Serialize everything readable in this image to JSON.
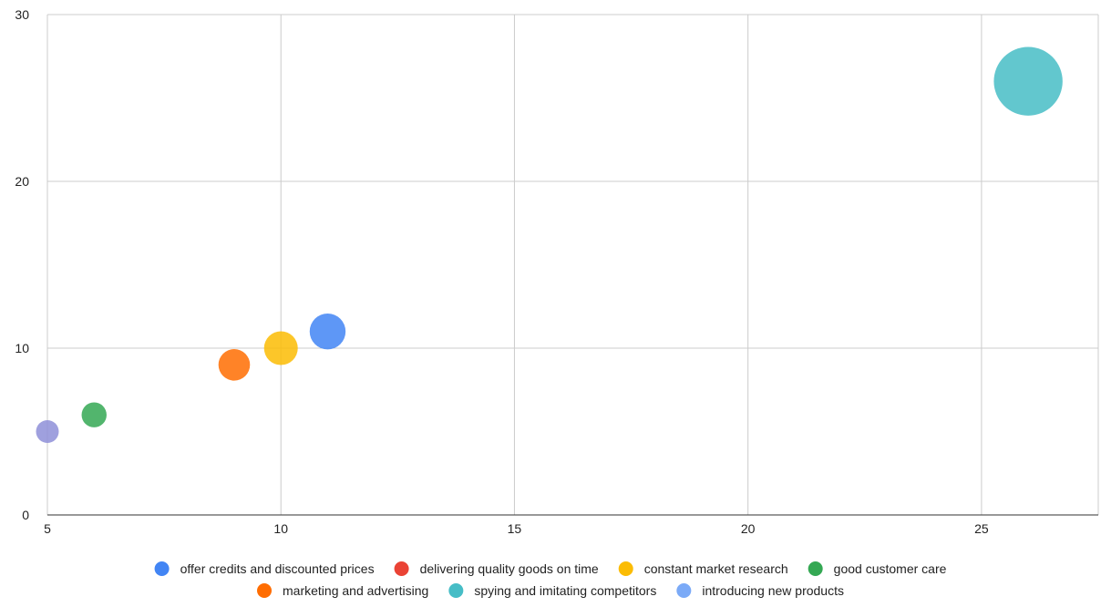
{
  "chart_data": {
    "type": "bubble",
    "title": "",
    "xlabel": "",
    "ylabel": "",
    "xlim": [
      5,
      27.5
    ],
    "ylim": [
      0,
      30
    ],
    "x_ticks": [
      5,
      10,
      15,
      20,
      25
    ],
    "y_ticks": [
      0,
      10,
      20,
      30
    ],
    "x_tick_labels": [
      "5",
      "10",
      "15",
      "20",
      "25"
    ],
    "y_tick_labels": [
      "0",
      "10",
      "20",
      "30"
    ],
    "grid": true,
    "legend_position": "bottom",
    "series": [
      {
        "name": "offer credits and discounted prices",
        "color": "#4285F4",
        "points": [
          {
            "x": 11,
            "y": 11,
            "size": 11
          }
        ]
      },
      {
        "name": "delivering quality goods on time",
        "color": "#EA4335",
        "points": []
      },
      {
        "name": "constant market research",
        "color": "#FBBC04",
        "points": [
          {
            "x": 10,
            "y": 10,
            "size": 10
          }
        ]
      },
      {
        "name": "good customer care",
        "color": "#34A853",
        "points": [
          {
            "x": 6,
            "y": 6,
            "size": 6
          }
        ]
      },
      {
        "name": "marketing and advertising",
        "color": "#FF6D01",
        "points": [
          {
            "x": 9,
            "y": 9,
            "size": 9
          }
        ]
      },
      {
        "name": "spying and imitating competitors",
        "color": "#46BDC6",
        "points": [
          {
            "x": 26,
            "y": 26,
            "size": 26
          }
        ]
      },
      {
        "name": "introducing new products",
        "color": "#7BAAF7",
        "points": []
      },
      {
        "name": "",
        "color": "#8E8FD8",
        "points": [
          {
            "x": 5,
            "y": 5,
            "size": 5
          }
        ]
      }
    ]
  }
}
